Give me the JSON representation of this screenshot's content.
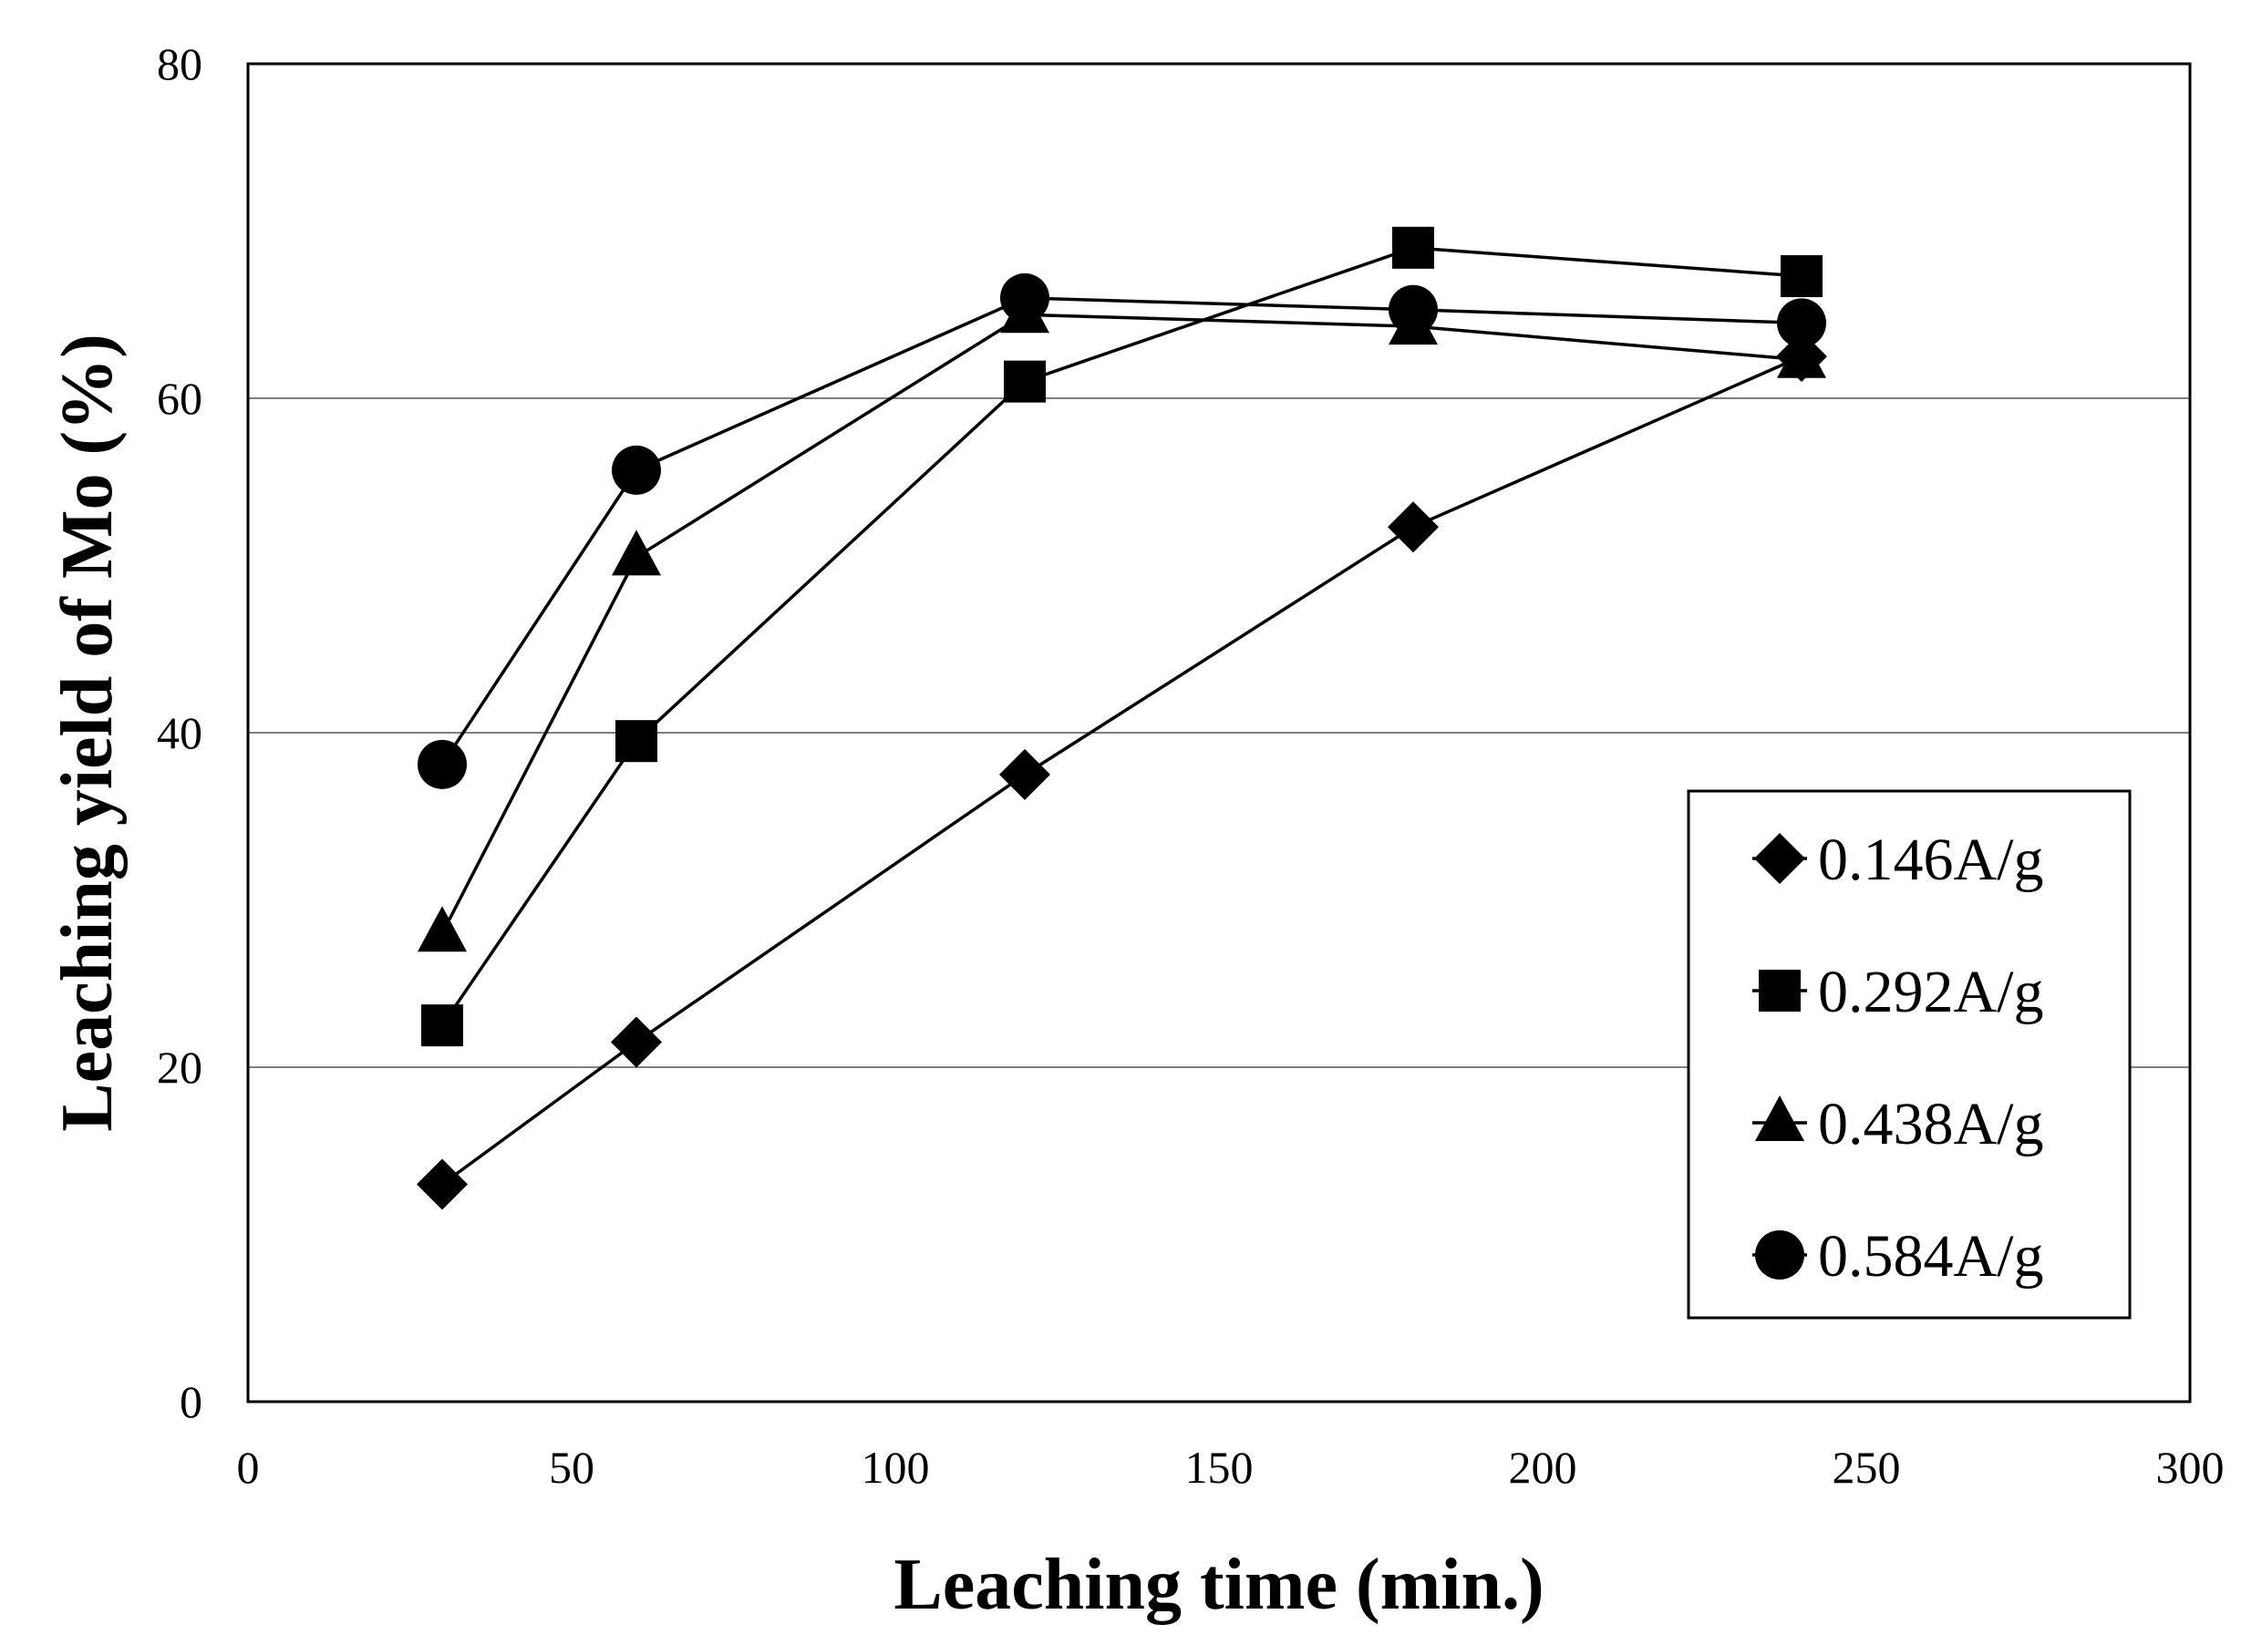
{
  "chart_data": {
    "type": "line",
    "title": "",
    "xlabel": "Leaching time (min.)",
    "ylabel": "Leaching yield of Mo (%)",
    "xlim": [
      0,
      300
    ],
    "ylim": [
      0,
      80
    ],
    "xticks": [
      0,
      50,
      100,
      150,
      200,
      250,
      300
    ],
    "yticks": [
      0,
      20,
      40,
      60,
      80
    ],
    "grid": "horizontal",
    "legend_position": "lower-right",
    "x": [
      30,
      60,
      120,
      180,
      240
    ],
    "series": [
      {
        "name": "0.146A/g",
        "marker": "diamond",
        "values": [
          13.0,
          21.5,
          37.5,
          52.3,
          62.5
        ]
      },
      {
        "name": "0.292A/g",
        "marker": "square",
        "values": [
          22.5,
          39.5,
          61.0,
          69.0,
          67.3
        ]
      },
      {
        "name": "0.438A/g",
        "marker": "triangle",
        "values": [
          28.0,
          50.5,
          65.0,
          64.3,
          62.3
        ]
      },
      {
        "name": "0.584A/g",
        "marker": "circle",
        "values": [
          38.1,
          55.7,
          66.0,
          65.3,
          64.5
        ]
      }
    ]
  }
}
